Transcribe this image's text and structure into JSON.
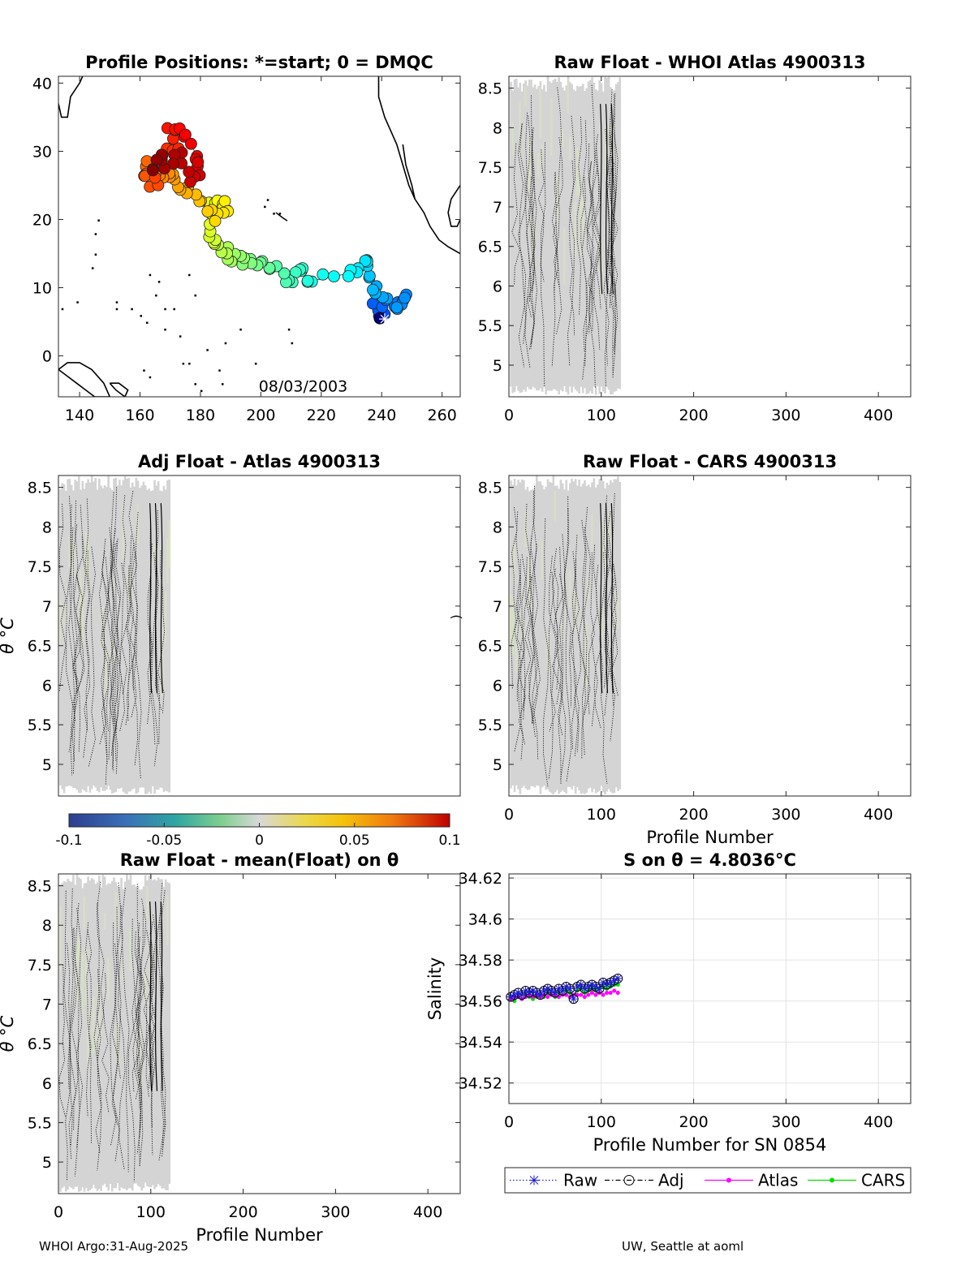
{
  "figure": {
    "footer_left": "WHOI Argo:31-Aug-2025",
    "footer_right": "UW, Seattle at aoml"
  },
  "colors": {
    "grid": "#e3e3e3",
    "gray_fill": "#d4d4d4",
    "raw": "#1f1fd0",
    "adj": "#000000",
    "atlas": "#ff00ff",
    "cars": "#00e000",
    "track_line": "#555555"
  },
  "chart_data": [
    {
      "id": "positions",
      "type": "scatter",
      "title": "Profile Positions: *=start; 0 = DMQC",
      "xlim": [
        133,
        266
      ],
      "ylim": [
        -6,
        41
      ],
      "xticks": [
        140,
        160,
        180,
        200,
        220,
        240,
        260
      ],
      "yticks": [
        0,
        10,
        20,
        30,
        40
      ],
      "annotation": "08/03/2003",
      "start": [
        241,
        6
      ],
      "track": [
        [
          241,
          6
        ],
        [
          238,
          7
        ],
        [
          244,
          8
        ],
        [
          248,
          9
        ],
        [
          246,
          7
        ],
        [
          240,
          9
        ],
        [
          237,
          10
        ],
        [
          236,
          13
        ],
        [
          235,
          14
        ],
        [
          232,
          13
        ],
        [
          228,
          12
        ],
        [
          217,
          11
        ],
        [
          214,
          12
        ],
        [
          211,
          12
        ],
        [
          209,
          11
        ],
        [
          204,
          13
        ],
        [
          200,
          13
        ],
        [
          196,
          14
        ],
        [
          193,
          14
        ],
        [
          190,
          15
        ],
        [
          187,
          16
        ],
        [
          185,
          17
        ],
        [
          183,
          19
        ],
        [
          184,
          22
        ],
        [
          187,
          22
        ],
        [
          190,
          22
        ],
        [
          185,
          20
        ],
        [
          181,
          22
        ],
        [
          176,
          24
        ],
        [
          172,
          24
        ],
        [
          170,
          27
        ],
        [
          166,
          26
        ],
        [
          163,
          28
        ],
        [
          161,
          27
        ],
        [
          165,
          25
        ],
        [
          168,
          29
        ],
        [
          172,
          31
        ],
        [
          170,
          34
        ],
        [
          175,
          33
        ],
        [
          178,
          30
        ],
        [
          180,
          28
        ],
        [
          177,
          26
        ],
        [
          173,
          29
        ],
        [
          169,
          28
        ],
        [
          166,
          29
        ],
        [
          162,
          26
        ]
      ]
    },
    {
      "id": "raw-atlas",
      "type": "heatmap",
      "title": "Raw Float - WHOI Atlas  4900313",
      "xlim": [
        0,
        435
      ],
      "ylim": [
        4.6,
        8.65
      ],
      "xticks": [
        0,
        100,
        200,
        300,
        400
      ],
      "yticks": [
        5,
        5.5,
        6,
        6.5,
        7,
        7.5,
        8,
        8.5
      ],
      "profiles": [
        1,
        119
      ],
      "ylabel_frag": "",
      "xlabel": ""
    },
    {
      "id": "adj-atlas",
      "type": "heatmap",
      "title": "Adj Float - Atlas  4900313",
      "xlim": [
        0,
        435
      ],
      "ylim": [
        4.6,
        8.65
      ],
      "xticks": [],
      "yticks": [
        5,
        5.5,
        6,
        6.5,
        7,
        7.5,
        8,
        8.5
      ],
      "profiles": [
        1,
        119
      ],
      "ylabel": "θ °C",
      "xlabel": ""
    },
    {
      "id": "raw-cars",
      "type": "heatmap",
      "title": "Raw Float - CARS  4900313",
      "xlim": [
        0,
        435
      ],
      "ylim": [
        4.6,
        8.65
      ],
      "xticks": [
        0,
        100,
        200,
        300,
        400
      ],
      "yticks": [
        5,
        5.5,
        6,
        6.5,
        7,
        7.5,
        8,
        8.5
      ],
      "profiles": [
        1,
        119
      ],
      "ylabel_frag": ")",
      "xlabel": "Profile Number"
    },
    {
      "id": "colorbar",
      "type": "colorbar",
      "clim": [
        -0.1,
        0.1
      ],
      "ticks": [
        "-0.1",
        "-0.05",
        "0",
        "0.05",
        "0.1"
      ]
    },
    {
      "id": "raw-mean",
      "type": "heatmap",
      "title": "Raw Float - mean(Float) on θ",
      "xlim": [
        0,
        435
      ],
      "ylim": [
        4.6,
        8.65
      ],
      "xticks": [
        0,
        100,
        200,
        300,
        400
      ],
      "yticks": [
        5,
        5.5,
        6,
        6.5,
        7,
        7.5,
        8,
        8.5
      ],
      "profiles": [
        1,
        119
      ],
      "ylabel": "θ °C",
      "xlabel": "Profile Number"
    },
    {
      "id": "salinity",
      "type": "line",
      "title": "S on θ = 4.8036°C",
      "xlim": [
        0,
        435
      ],
      "ylim": [
        34.51,
        34.622
      ],
      "xticks": [
        0,
        100,
        200,
        300,
        400
      ],
      "yticks": [
        34.52,
        34.54,
        34.56,
        34.58,
        34.6,
        34.62
      ],
      "ylabel": "Salinity",
      "xlabel": "Profile Number for SN 0854",
      "grid": true,
      "x": [
        2,
        6,
        10,
        14,
        18,
        22,
        26,
        30,
        34,
        38,
        42,
        46,
        50,
        54,
        58,
        62,
        66,
        70,
        74,
        78,
        82,
        86,
        90,
        94,
        98,
        102,
        106,
        110,
        114,
        118
      ],
      "series": [
        {
          "name": "Raw",
          "values": [
            34.562,
            34.563,
            34.564,
            34.563,
            34.565,
            34.564,
            34.565,
            34.564,
            34.563,
            34.565,
            34.566,
            34.565,
            34.564,
            34.566,
            34.565,
            34.567,
            34.566,
            34.561,
            34.567,
            34.568,
            34.566,
            34.567,
            34.568,
            34.567,
            34.566,
            34.569,
            34.568,
            34.569,
            34.57,
            34.571
          ]
        },
        {
          "name": "Adj",
          "values": [
            34.562,
            34.563,
            34.564,
            34.563,
            34.565,
            34.564,
            34.565,
            34.564,
            34.563,
            34.565,
            34.566,
            34.565,
            34.564,
            34.566,
            34.565,
            34.567,
            34.566,
            34.561,
            34.567,
            34.568,
            34.566,
            34.567,
            34.568,
            34.567,
            34.566,
            34.569,
            34.568,
            34.569,
            34.57,
            34.571
          ]
        },
        {
          "name": "Atlas",
          "values": [
            34.561,
            34.562,
            34.562,
            34.561,
            34.562,
            34.563,
            34.562,
            34.563,
            34.562,
            34.563,
            34.562,
            34.563,
            34.563,
            34.562,
            34.563,
            34.563,
            34.562,
            34.563,
            34.563,
            34.563,
            34.562,
            34.563,
            34.564,
            34.563,
            34.564,
            34.563,
            34.564,
            34.564,
            34.565,
            34.564
          ]
        },
        {
          "name": "CARS",
          "values": [
            34.561,
            34.56,
            34.562,
            34.561,
            34.563,
            34.562,
            34.561,
            34.562,
            34.563,
            34.562,
            34.564,
            34.563,
            34.562,
            34.564,
            34.563,
            34.565,
            34.564,
            34.563,
            34.565,
            34.566,
            34.564,
            34.565,
            34.566,
            34.565,
            34.566,
            34.567,
            34.566,
            34.567,
            34.568,
            34.568
          ]
        }
      ],
      "legend": [
        "Raw",
        "Adj",
        "Atlas",
        "CARS"
      ],
      "legend_position": "below"
    }
  ]
}
